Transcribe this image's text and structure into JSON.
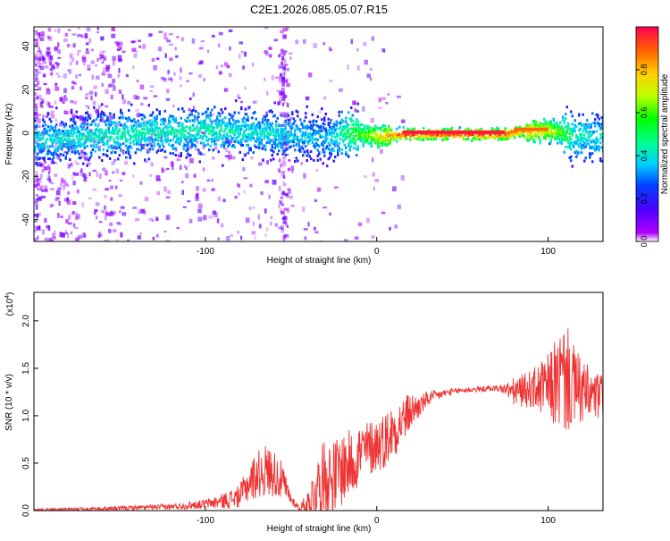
{
  "title": "C2E1.2026.085.05.07.R15",
  "colorbar": {
    "label": "Normalized spectral amplitude",
    "ticks": [
      "0.0",
      "0.2",
      "0.4",
      "0.6",
      "0.8"
    ],
    "tick_values": [
      0.0,
      0.2,
      0.4,
      0.6,
      0.8
    ]
  },
  "chart_data": [
    {
      "type": "heatmap",
      "xlabel": "Height of straight line (km)",
      "ylabel": "Frequency (Hz)",
      "xlim": [
        -200,
        132
      ],
      "ylim": [
        -50,
        49
      ],
      "x_ticks": [
        -100,
        0,
        100
      ],
      "x_tick_labels": [
        "-100",
        "0",
        "100"
      ],
      "y_ticks": [
        -40,
        -20,
        0,
        20,
        40
      ],
      "y_tick_labels": [
        "-40",
        "-20",
        "0",
        "20",
        "40"
      ],
      "zlim": [
        0,
        1
      ],
      "grid": false,
      "signal_band": [
        {
          "x": -200,
          "f": -3,
          "amp": 0.4
        },
        {
          "x": -150,
          "f": 0,
          "amp": 0.45
        },
        {
          "x": -100,
          "f": 2,
          "amp": 0.45
        },
        {
          "x": -55,
          "f": 0,
          "amp": 0.4
        },
        {
          "x": -30,
          "f": -2,
          "amp": 0.35
        },
        {
          "x": -15,
          "f": 1,
          "amp": 0.55
        },
        {
          "x": 0,
          "f": -1,
          "amp": 0.75
        },
        {
          "x": 15,
          "f": 0,
          "amp": 0.95
        },
        {
          "x": 75,
          "f": 0,
          "amp": 0.95
        },
        {
          "x": 80,
          "f": 1,
          "amp": 0.9
        },
        {
          "x": 100,
          "f": 2,
          "amp": 0.75
        },
        {
          "x": 115,
          "f": -1,
          "amp": 0.45
        },
        {
          "x": 132,
          "f": -1,
          "amp": 0.4
        }
      ]
    },
    {
      "type": "line",
      "xlabel": "Height of straight line (km)",
      "ylabel": "SNR (10 * v/v)",
      "y_multiplier": "(x10",
      "y_multiplier_exp": "4",
      "xlim": [
        -200,
        132
      ],
      "ylim": [
        0,
        2.3
      ],
      "x_ticks": [
        -100,
        0,
        100
      ],
      "x_tick_labels": [
        "-100",
        "0",
        "100"
      ],
      "y_ticks": [
        0.0,
        0.5,
        1.0,
        1.5,
        2.0
      ],
      "y_tick_labels": [
        "0.0",
        "0.5",
        "1.0",
        "1.5",
        "2.0"
      ],
      "grid": false,
      "series": [
        {
          "color": "#ee3333",
          "x": [
            -200,
            -160,
            -120,
            -100,
            -90,
            -80,
            -75,
            -70,
            -65,
            -60,
            -55,
            -50,
            -45,
            -40,
            -35,
            -30,
            -25,
            -20,
            -15,
            -10,
            -5,
            0,
            5,
            10,
            15,
            20,
            25,
            30,
            40,
            50,
            60,
            70,
            75,
            80,
            90,
            100,
            105,
            110,
            115,
            120,
            125,
            130
          ],
          "y": [
            0.01,
            0.02,
            0.04,
            0.07,
            0.1,
            0.15,
            0.28,
            0.38,
            0.42,
            0.4,
            0.3,
            0.12,
            0.02,
            0.08,
            0.25,
            0.38,
            0.35,
            0.45,
            0.5,
            0.6,
            0.65,
            0.7,
            0.75,
            0.85,
            0.95,
            1.05,
            1.1,
            1.18,
            1.24,
            1.27,
            1.28,
            1.29,
            1.28,
            1.25,
            1.28,
            1.3,
            1.35,
            1.4,
            1.3,
            1.25,
            1.2,
            1.2
          ],
          "amplitude": [
            0.01,
            0.02,
            0.03,
            0.05,
            0.08,
            0.12,
            0.2,
            0.25,
            0.28,
            0.25,
            0.2,
            0.06,
            0.03,
            0.15,
            0.3,
            0.4,
            0.4,
            0.4,
            0.35,
            0.35,
            0.3,
            0.3,
            0.3,
            0.3,
            0.25,
            0.2,
            0.12,
            0.08,
            0.04,
            0.03,
            0.03,
            0.03,
            0.06,
            0.15,
            0.2,
            0.35,
            0.5,
            0.6,
            0.45,
            0.35,
            0.3,
            0.25
          ]
        }
      ]
    }
  ]
}
